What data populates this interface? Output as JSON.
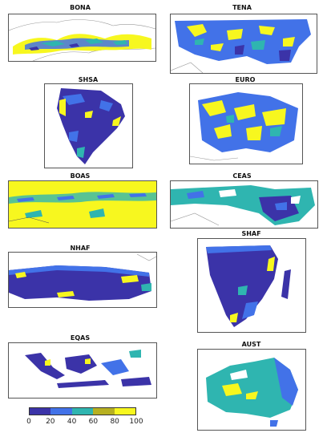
{
  "panels": [
    {
      "id": "bona",
      "title": "BONA"
    },
    {
      "id": "tena",
      "title": "TENA"
    },
    {
      "id": "shsa",
      "title": "SHSA"
    },
    {
      "id": "euro",
      "title": "EURO"
    },
    {
      "id": "boas",
      "title": "BOAS"
    },
    {
      "id": "ceas",
      "title": "CEAS"
    },
    {
      "id": "nhaf",
      "title": "NHAF"
    },
    {
      "id": "shaf",
      "title": "SHAF"
    },
    {
      "id": "eqas",
      "title": "EQAS"
    },
    {
      "id": "aust",
      "title": "AUST"
    }
  ],
  "colorbar": {
    "colors": [
      "#3b33a8",
      "#4272e8",
      "#2fb5b0",
      "#b7b021",
      "#f7f71f"
    ],
    "ticks": [
      "0",
      "20",
      "40",
      "60",
      "80",
      "100"
    ]
  }
}
